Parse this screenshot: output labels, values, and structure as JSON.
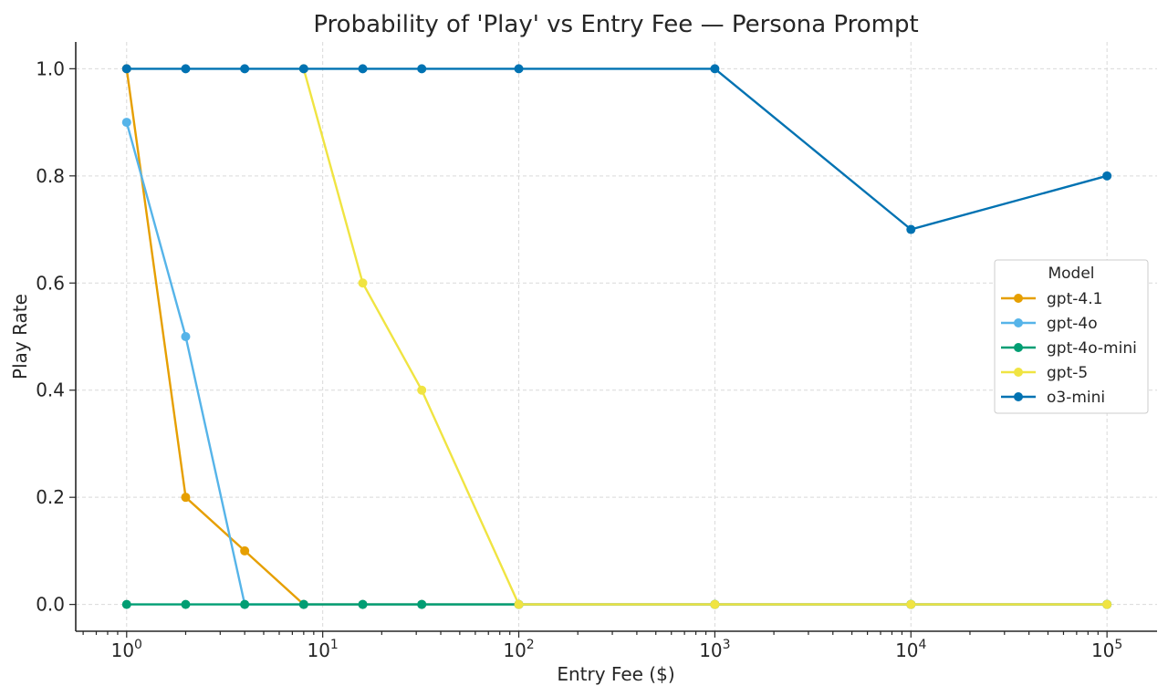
{
  "chart_data": {
    "type": "line",
    "title": "Probability of 'Play' vs Entry Fee — Persona Prompt",
    "xlabel": "Entry Fee ($)",
    "ylabel": "Play Rate",
    "xscale": "log",
    "xlim": [
      0.55,
      180000
    ],
    "ylim": [
      -0.05,
      1.05
    ],
    "grid": true,
    "x_ticks": [
      {
        "value": 1,
        "base": "10",
        "exp": "0"
      },
      {
        "value": 10,
        "base": "10",
        "exp": "1"
      },
      {
        "value": 100,
        "base": "10",
        "exp": "2"
      },
      {
        "value": 1000,
        "base": "10",
        "exp": "3"
      },
      {
        "value": 10000,
        "base": "10",
        "exp": "4"
      },
      {
        "value": 100000,
        "base": "10",
        "exp": "5"
      }
    ],
    "y_ticks": [
      {
        "value": 0.0,
        "label": "0.0"
      },
      {
        "value": 0.2,
        "label": "0.2"
      },
      {
        "value": 0.4,
        "label": "0.4"
      },
      {
        "value": 0.6,
        "label": "0.6"
      },
      {
        "value": 0.8,
        "label": "0.8"
      },
      {
        "value": 1.0,
        "label": "1.0"
      }
    ],
    "legend": {
      "title": "Model",
      "placement": "center-right"
    },
    "series": [
      {
        "name": "gpt-4.1",
        "color": "#E69F00",
        "x": [
          1,
          2,
          4,
          8,
          16,
          32,
          100,
          1000,
          10000,
          100000
        ],
        "y": [
          1.0,
          0.2,
          0.1,
          0.0,
          0.0,
          0.0,
          0.0,
          0.0,
          0.0,
          0.0
        ]
      },
      {
        "name": "gpt-4o",
        "color": "#56B4E9",
        "x": [
          1,
          2,
          4,
          8,
          16,
          32,
          100,
          1000,
          10000,
          100000
        ],
        "y": [
          0.9,
          0.5,
          0.0,
          0.0,
          0.0,
          0.0,
          0.0,
          0.0,
          0.0,
          0.0
        ]
      },
      {
        "name": "gpt-4o-mini",
        "color": "#009E73",
        "x": [
          1,
          2,
          4,
          8,
          16,
          32,
          100,
          1000,
          10000,
          100000
        ],
        "y": [
          0.0,
          0.0,
          0.0,
          0.0,
          0.0,
          0.0,
          0.0,
          0.0,
          0.0,
          0.0
        ]
      },
      {
        "name": "gpt-5",
        "color": "#F0E442",
        "x": [
          8,
          16,
          32,
          100,
          1000,
          10000,
          100000
        ],
        "y": [
          1.0,
          0.6,
          0.4,
          0.0,
          0.0,
          0.0,
          0.0
        ]
      },
      {
        "name": "o3-mini",
        "color": "#0072B2",
        "x": [
          1,
          2,
          4,
          8,
          16,
          32,
          100,
          1000,
          10000,
          100000
        ],
        "y": [
          1.0,
          1.0,
          1.0,
          1.0,
          1.0,
          1.0,
          1.0,
          1.0,
          0.7,
          0.8
        ]
      }
    ]
  }
}
